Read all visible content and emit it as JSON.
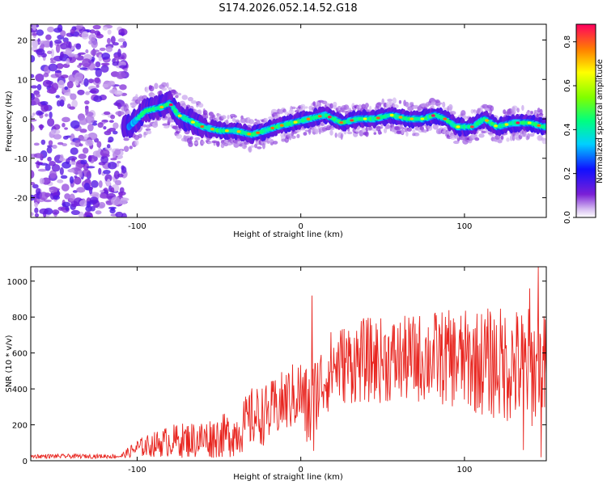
{
  "title": "S174.2026.052.14.52.G18",
  "chart_data": [
    {
      "type": "heatmap",
      "name": "spectrogram",
      "xlabel": "Height of straight line (km)",
      "ylabel": "Frequency (Hz)",
      "xlim": [
        -165,
        150
      ],
      "ylim": [
        -25,
        24
      ],
      "xticks": [
        -100,
        0,
        100
      ],
      "yticks": [
        -20,
        -10,
        0,
        10,
        20
      ],
      "colorbar": {
        "label": "Normalized spectral amplitude",
        "range": [
          0,
          0.88
        ],
        "ticks": [
          0.0,
          0.2,
          0.4,
          0.6,
          0.8
        ]
      },
      "ridge": [
        {
          "x": -105,
          "f": -2
        },
        {
          "x": -95,
          "f": 2
        },
        {
          "x": -85,
          "f": 3
        },
        {
          "x": -80,
          "f": 4
        },
        {
          "x": -75,
          "f": 1
        },
        {
          "x": -70,
          "f": 0
        },
        {
          "x": -60,
          "f": -2
        },
        {
          "x": -50,
          "f": -3
        },
        {
          "x": -40,
          "f": -3
        },
        {
          "x": -30,
          "f": -4
        },
        {
          "x": -22,
          "f": -3
        },
        {
          "x": -15,
          "f": -2
        },
        {
          "x": -5,
          "f": -1
        },
        {
          "x": 5,
          "f": 0
        },
        {
          "x": 15,
          "f": 1
        },
        {
          "x": 25,
          "f": -1
        },
        {
          "x": 35,
          "f": 0
        },
        {
          "x": 45,
          "f": 0
        },
        {
          "x": 55,
          "f": 1
        },
        {
          "x": 65,
          "f": 0
        },
        {
          "x": 75,
          "f": 0
        },
        {
          "x": 82,
          "f": 1
        },
        {
          "x": 88,
          "f": 0
        },
        {
          "x": 95,
          "f": -2
        },
        {
          "x": 105,
          "f": -2
        },
        {
          "x": 112,
          "f": 0
        },
        {
          "x": 120,
          "f": -2
        },
        {
          "x": 130,
          "f": -1
        },
        {
          "x": 140,
          "f": -1
        },
        {
          "x": 148,
          "f": -2
        }
      ]
    },
    {
      "type": "line",
      "name": "snr",
      "xlabel": "Height of straight line (km)",
      "ylabel": "SNR (10 * v/v)",
      "xlim": [
        -165,
        150
      ],
      "ylim": [
        0,
        1080
      ],
      "xticks": [
        -100,
        0,
        100
      ],
      "yticks": [
        0,
        200,
        400,
        600,
        800,
        1000
      ],
      "color": "#e8251f",
      "envelope": [
        {
          "x": -165,
          "mean": 25,
          "spread": 12
        },
        {
          "x": -110,
          "mean": 25,
          "spread": 12
        },
        {
          "x": -100,
          "mean": 70,
          "spread": 50
        },
        {
          "x": -80,
          "mean": 110,
          "spread": 90
        },
        {
          "x": -60,
          "mean": 120,
          "spread": 110
        },
        {
          "x": -40,
          "mean": 150,
          "spread": 130
        },
        {
          "x": -30,
          "mean": 240,
          "spread": 170
        },
        {
          "x": -20,
          "mean": 260,
          "spread": 170
        },
        {
          "x": -10,
          "mean": 330,
          "spread": 180
        },
        {
          "x": 0,
          "mean": 380,
          "spread": 200
        },
        {
          "x": 5,
          "mean": 260,
          "spread": 250
        },
        {
          "x": 10,
          "mean": 400,
          "spread": 220
        },
        {
          "x": 20,
          "mean": 530,
          "spread": 220
        },
        {
          "x": 40,
          "mean": 560,
          "spread": 240
        },
        {
          "x": 60,
          "mean": 560,
          "spread": 240
        },
        {
          "x": 80,
          "mean": 580,
          "spread": 260
        },
        {
          "x": 100,
          "mean": 560,
          "spread": 280
        },
        {
          "x": 120,
          "mean": 540,
          "spread": 320
        },
        {
          "x": 140,
          "mean": 520,
          "spread": 340
        },
        {
          "x": 150,
          "mean": 500,
          "spread": 320
        }
      ],
      "peaks": [
        {
          "x": 7,
          "y": 920
        },
        {
          "x": 8,
          "y": 55
        },
        {
          "x": 140,
          "y": 960
        },
        {
          "x": 145,
          "y": 1080
        },
        {
          "x": 147,
          "y": 20
        },
        {
          "x": 136,
          "y": 60
        }
      ]
    }
  ]
}
